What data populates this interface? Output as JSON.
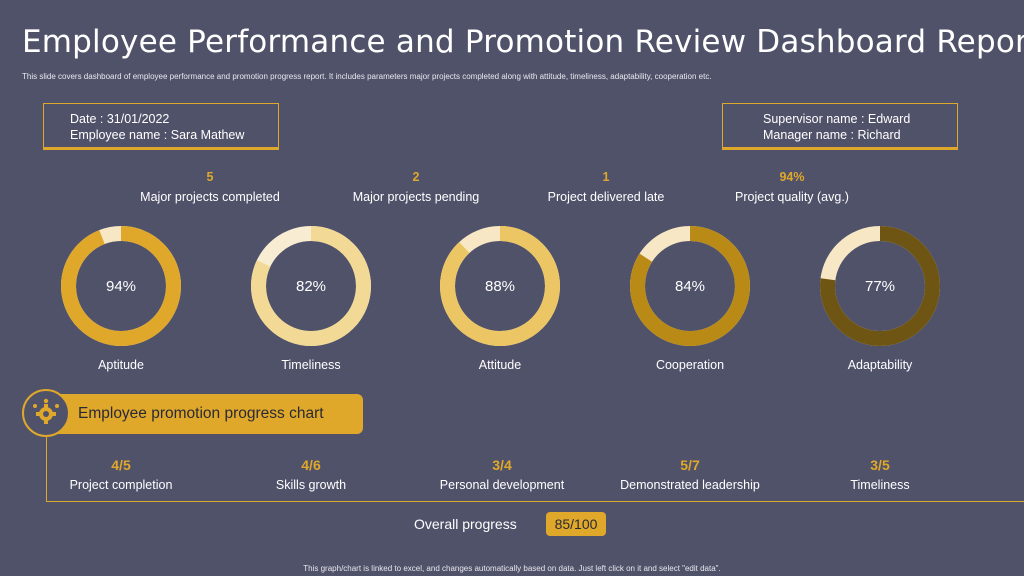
{
  "header": {
    "title": "Employee Performance and Promotion Review Dashboard Report",
    "subtitle": "This slide covers dashboard of employee performance and promotion progress report. It includes parameters major projects completed along with attitude, timeliness, adaptability, cooperation etc."
  },
  "info_left": {
    "date": "Date : 31/01/2022",
    "employee": "Employee name : Sara Mathew"
  },
  "info_right": {
    "supervisor": "Supervisor name : Edward",
    "manager": "Manager name : Richard"
  },
  "stats": [
    {
      "value": "5",
      "label": "Major projects completed"
    },
    {
      "value": "2",
      "label": "Major projects pending"
    },
    {
      "value": "1",
      "label": "Project delivered late"
    },
    {
      "value": "94%",
      "label": "Project quality (avg.)"
    }
  ],
  "donuts": [
    {
      "pct_text": "94%",
      "value": 94,
      "label": "Aptitude",
      "color": "#e0a82a",
      "track": "#f7e7c4"
    },
    {
      "pct_text": "82%",
      "value": 82,
      "label": "Timeliness",
      "color": "#f2d995",
      "track": "#f8ecd2"
    },
    {
      "pct_text": "88%",
      "value": 88,
      "label": "Attitude",
      "color": "#ecc665",
      "track": "#f7e7c4"
    },
    {
      "pct_text": "84%",
      "value": 84,
      "label": "Cooperation",
      "color": "#b98a16",
      "track": "#f7e7c4"
    },
    {
      "pct_text": "77%",
      "value": 77,
      "label": "Adaptability",
      "color": "#6e5514",
      "track": "#f7e7c4"
    }
  ],
  "chart_banner": {
    "label": "Employee promotion progress chart",
    "icon": "gear-people-icon"
  },
  "progress": [
    {
      "value": "4/5",
      "label": "Project completion"
    },
    {
      "value": "4/6",
      "label": "Skills growth"
    },
    {
      "value": "3/4",
      "label": "Personal development"
    },
    {
      "value": "5/7",
      "label": "Demonstrated leadership"
    },
    {
      "value": "3/5",
      "label": "Timeliness"
    }
  ],
  "overall": {
    "label": "Overall progress",
    "value": "85/100"
  },
  "footer": "This graph/chart is linked to excel, and changes automatically based on data. Just left click on it and select \"edit data\"."
}
